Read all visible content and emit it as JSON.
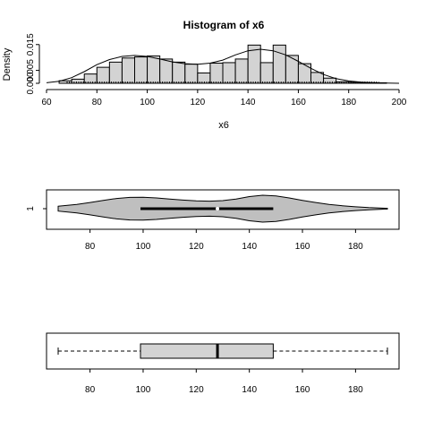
{
  "chart_data": [
    {
      "type": "histogram",
      "title": "Histogram of x6",
      "xlabel": "x6",
      "ylabel": "Density",
      "xlim": [
        60,
        200
      ],
      "ylim": [
        0,
        0.017
      ],
      "x_ticks": [
        "60",
        "80",
        "100",
        "120",
        "140",
        "160",
        "180",
        "200"
      ],
      "y_ticks": [
        "0.000",
        "0.005",
        "0.015"
      ],
      "y_tick_values": [
        0,
        0.005,
        0.015
      ],
      "bins": [
        65,
        70,
        75,
        80,
        85,
        90,
        95,
        100,
        105,
        110,
        115,
        120,
        125,
        130,
        135,
        140,
        145,
        150,
        155,
        160,
        165,
        170,
        175,
        180,
        185,
        190,
        195
      ],
      "density": [
        0.001,
        0.0016,
        0.0036,
        0.0062,
        0.0082,
        0.0098,
        0.0102,
        0.0106,
        0.0094,
        0.0082,
        0.0074,
        0.004,
        0.0078,
        0.008,
        0.0094,
        0.0148,
        0.008,
        0.0148,
        0.0108,
        0.0076,
        0.0042,
        0.002,
        0.0006,
        0.0004,
        0.0002,
        0.0002
      ],
      "density_curve": {
        "x": [
          60,
          65,
          70,
          75,
          80,
          85,
          90,
          95,
          100,
          105,
          110,
          115,
          120,
          125,
          130,
          135,
          140,
          145,
          150,
          155,
          160,
          165,
          170,
          175,
          180,
          185,
          190,
          195,
          200
        ],
        "y": [
          0.0002,
          0.0008,
          0.0022,
          0.0045,
          0.0072,
          0.0092,
          0.0104,
          0.0108,
          0.0104,
          0.0094,
          0.0083,
          0.0076,
          0.0074,
          0.0078,
          0.009,
          0.011,
          0.0126,
          0.0132,
          0.0126,
          0.011,
          0.0085,
          0.0058,
          0.0034,
          0.0018,
          0.0009,
          0.0004,
          0.0002,
          0.0001,
          0.0
        ]
      },
      "rug": true
    },
    {
      "type": "violin",
      "group_label": "1",
      "xlim": [
        60,
        200
      ],
      "x_ticks": [
        "80",
        "100",
        "120",
        "140",
        "160",
        "180"
      ],
      "min": 68,
      "q1": 99,
      "median": 128,
      "q3": 149,
      "max": 192,
      "violin_profile": {
        "x": [
          68,
          75,
          80,
          85,
          90,
          95,
          100,
          105,
          110,
          115,
          120,
          125,
          130,
          135,
          140,
          145,
          150,
          155,
          160,
          165,
          170,
          175,
          180,
          185,
          192
        ],
        "halfwidth": [
          0.18,
          0.32,
          0.46,
          0.62,
          0.76,
          0.84,
          0.85,
          0.8,
          0.72,
          0.64,
          0.58,
          0.56,
          0.6,
          0.72,
          0.9,
          1.0,
          0.95,
          0.8,
          0.62,
          0.46,
          0.32,
          0.22,
          0.14,
          0.08,
          0.03
        ]
      }
    },
    {
      "type": "boxplot",
      "xlim": [
        60,
        200
      ],
      "x_ticks": [
        "80",
        "100",
        "120",
        "140",
        "160",
        "180"
      ],
      "min": 68,
      "q1": 99,
      "median": 128,
      "q3": 149,
      "max": 192
    }
  ]
}
